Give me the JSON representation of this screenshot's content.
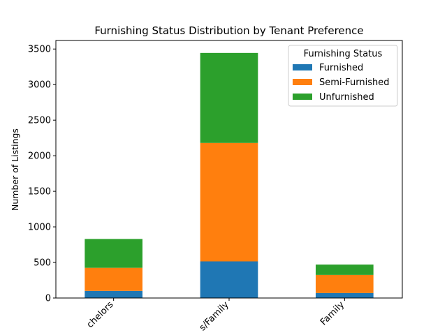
{
  "chart_data": {
    "type": "bar",
    "stacked": true,
    "title": "Furnishing Status Distribution by Tenant Preference",
    "xlabel": "",
    "ylabel": "Number of Listings",
    "categories": [
      "Bachelors",
      "Bachelors/Family",
      "Family"
    ],
    "visible_tick_labels": [
      "chelors",
      "s/Family",
      "Family"
    ],
    "ylim": [
      0,
      3620
    ],
    "yticks": [
      0,
      500,
      1000,
      1500,
      2000,
      2500,
      3000,
      3500
    ],
    "grid": false,
    "legend": {
      "title": "Furnishing Status",
      "placement": "top-right"
    },
    "series": [
      {
        "name": "Furnished",
        "color": "#1f77b4",
        "values": [
          100,
          515,
          70
        ]
      },
      {
        "name": "Semi-Furnished",
        "color": "#ff7f0e",
        "values": [
          325,
          1665,
          255
        ]
      },
      {
        "name": "Unfurnished",
        "color": "#2ca02c",
        "values": [
          405,
          1265,
          145
        ]
      }
    ]
  }
}
